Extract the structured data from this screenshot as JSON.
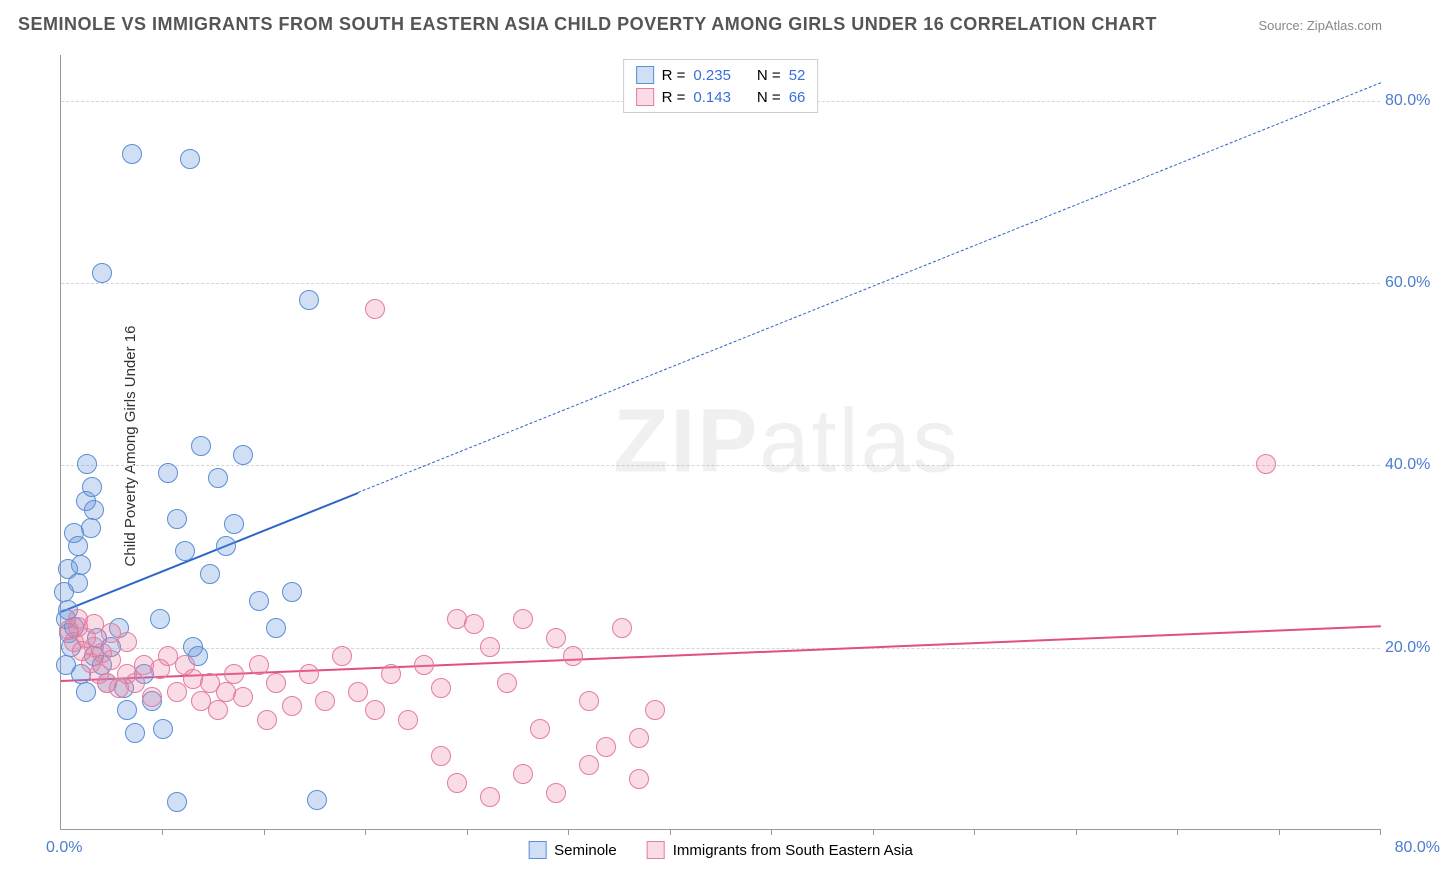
{
  "title": "SEMINOLE VS IMMIGRANTS FROM SOUTH EASTERN ASIA CHILD POVERTY AMONG GIRLS UNDER 16 CORRELATION CHART",
  "source_label": "Source: ",
  "source_value": "ZipAtlas.com",
  "y_axis_label": "Child Poverty Among Girls Under 16",
  "watermark_a": "ZIP",
  "watermark_b": "atlas",
  "x_range": [
    0,
    80
  ],
  "y_range": [
    0,
    85
  ],
  "x_tick_min": "0.0%",
  "x_tick_max": "80.0%",
  "y_ticks": [
    {
      "v": 20,
      "label": "20.0%"
    },
    {
      "v": 40,
      "label": "40.0%"
    },
    {
      "v": 60,
      "label": "60.0%"
    },
    {
      "v": 80,
      "label": "80.0%"
    }
  ],
  "x_minor_step": 6.15,
  "x_minor_count": 13,
  "colors": {
    "blue_fill": "rgba(100,150,220,0.30)",
    "blue_stroke": "#5b8fd6",
    "pink_fill": "rgba(235,130,160,0.28)",
    "pink_stroke": "#e47da0",
    "blue_line": "#2b65c7",
    "pink_line": "#e14f86",
    "tick_blue": "#4a7cd0",
    "tick_pink": "#e14f86",
    "link_blue": "#3b6fd8",
    "title_color": "#555",
    "source_color": "#888"
  },
  "point_radius": 10,
  "series": [
    {
      "key": "seminole",
      "label": "Seminole",
      "R_label": "R =",
      "R": "0.235",
      "N_label": "N =",
      "N": "52",
      "color_fill": "rgba(100,150,220,0.30)",
      "color_stroke": "#5b8fd6",
      "trend": {
        "x1": 0,
        "y1": 24,
        "x2": 80,
        "y2": 82,
        "solid_to_x": 18,
        "color": "#2b65c7",
        "width": 2.5
      },
      "points": [
        [
          0.3,
          23
        ],
        [
          0.5,
          21.5
        ],
        [
          0.6,
          20
        ],
        [
          0.8,
          22.2
        ],
        [
          0.3,
          18
        ],
        [
          0.4,
          24
        ],
        [
          1,
          31
        ],
        [
          0.8,
          32.5
        ],
        [
          1,
          27
        ],
        [
          1.2,
          29
        ],
        [
          1.5,
          36
        ],
        [
          1.8,
          33
        ],
        [
          2,
          35
        ],
        [
          1.2,
          17
        ],
        [
          1.5,
          15
        ],
        [
          2,
          19
        ],
        [
          2.2,
          21
        ],
        [
          2.5,
          18
        ],
        [
          2.8,
          16
        ],
        [
          3,
          20
        ],
        [
          3.5,
          22
        ],
        [
          3.8,
          15.5
        ],
        [
          4,
          13
        ],
        [
          4.5,
          10.5
        ],
        [
          5,
          17
        ],
        [
          5.5,
          14
        ],
        [
          6,
          23
        ],
        [
          6.5,
          39
        ],
        [
          7,
          34
        ],
        [
          7.5,
          30.5
        ],
        [
          8,
          20
        ],
        [
          8.5,
          42
        ],
        [
          9,
          28
        ],
        [
          9.5,
          38.5
        ],
        [
          10,
          31
        ],
        [
          10.5,
          33.5
        ],
        [
          11,
          41
        ],
        [
          12,
          25
        ],
        [
          13,
          22
        ],
        [
          14,
          26
        ],
        [
          4.3,
          74
        ],
        [
          7.8,
          73.5
        ],
        [
          2.5,
          61
        ],
        [
          15,
          58
        ],
        [
          1.6,
          40
        ],
        [
          1.9,
          37.5
        ],
        [
          0.2,
          26
        ],
        [
          0.4,
          28.5
        ],
        [
          6.2,
          11
        ],
        [
          7,
          3
        ],
        [
          15.5,
          3.2
        ],
        [
          8.3,
          19
        ]
      ]
    },
    {
      "key": "immigrants",
      "label": "Immigrants from South Eastern Asia",
      "R_label": "R =",
      "R": "0.143",
      "N_label": "N =",
      "N": "66",
      "color_fill": "rgba(235,130,160,0.28)",
      "color_stroke": "#e47da0",
      "trend": {
        "x1": 0,
        "y1": 16.5,
        "x2": 80,
        "y2": 22.5,
        "solid_to_x": 80,
        "color": "#e14f86",
        "width": 2.5
      },
      "points": [
        [
          0.5,
          21.8
        ],
        [
          0.8,
          20.5
        ],
        [
          1,
          22.2
        ],
        [
          1.3,
          19.5
        ],
        [
          1.5,
          21
        ],
        [
          1.8,
          18.2
        ],
        [
          2,
          20
        ],
        [
          2.3,
          17
        ],
        [
          2.5,
          19.3
        ],
        [
          2.8,
          16
        ],
        [
          3,
          18.5
        ],
        [
          3.5,
          15.5
        ],
        [
          4,
          17
        ],
        [
          4.5,
          16
        ],
        [
          5,
          18
        ],
        [
          5.5,
          14.5
        ],
        [
          6,
          17.5
        ],
        [
          6.5,
          19
        ],
        [
          7,
          15
        ],
        [
          7.5,
          18
        ],
        [
          8,
          16.5
        ],
        [
          8.5,
          14
        ],
        [
          9,
          16
        ],
        [
          9.5,
          13
        ],
        [
          10,
          15
        ],
        [
          10.5,
          17
        ],
        [
          11,
          14.5
        ],
        [
          12,
          18
        ],
        [
          12.5,
          12
        ],
        [
          13,
          16
        ],
        [
          14,
          13.5
        ],
        [
          15,
          17
        ],
        [
          16,
          14
        ],
        [
          17,
          19
        ],
        [
          18,
          15
        ],
        [
          19,
          13
        ],
        [
          20,
          17
        ],
        [
          21,
          12
        ],
        [
          22,
          18
        ],
        [
          23,
          15.5
        ],
        [
          24,
          23
        ],
        [
          25,
          22.5
        ],
        [
          26,
          20
        ],
        [
          27,
          16
        ],
        [
          28,
          23
        ],
        [
          29,
          11
        ],
        [
          30,
          21
        ],
        [
          31,
          19
        ],
        [
          32,
          14
        ],
        [
          33,
          9
        ],
        [
          34,
          22
        ],
        [
          35,
          10
        ],
        [
          36,
          13
        ],
        [
          19,
          57
        ],
        [
          23,
          8
        ],
        [
          24,
          5
        ],
        [
          28,
          6
        ],
        [
          32,
          7
        ],
        [
          35,
          5.5
        ],
        [
          30,
          4
        ],
        [
          26,
          3.5
        ],
        [
          73,
          40
        ],
        [
          1,
          23
        ],
        [
          2,
          22.5
        ],
        [
          3,
          21.5
        ],
        [
          4,
          20.5
        ]
      ]
    }
  ]
}
